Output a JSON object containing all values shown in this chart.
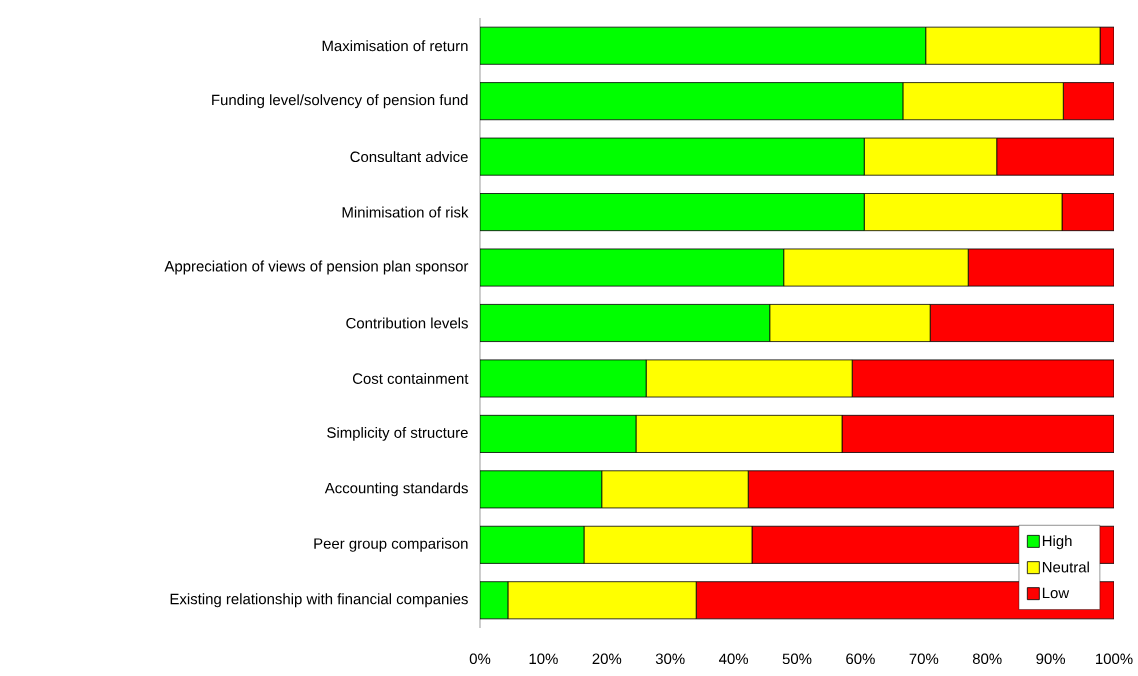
{
  "chart_data": {
    "type": "bar",
    "orientation": "horizontal",
    "stacked": true,
    "categories": [
      "Maximisation of return",
      "Funding level/solvency of pension fund",
      "Consultant advice",
      "Minimisation of risk",
      "Appreciation of views of pension plan sponsor",
      "Contribution levels",
      "Cost containment",
      "Simplicity of structure",
      "Accounting standards",
      "Peer group comparison",
      "Existing relationship with financial companies"
    ],
    "series": [
      {
        "name": "High",
        "color": "#00ff00",
        "values": [
          70.3,
          66.7,
          60.6,
          60.6,
          47.9,
          45.7,
          26.2,
          24.6,
          19.2,
          16.4,
          4.4
        ]
      },
      {
        "name": "Neutral",
        "color": "#ffff00",
        "values": [
          27.5,
          25.3,
          20.9,
          31.2,
          29.1,
          25.3,
          32.5,
          32.5,
          23.1,
          26.5,
          29.7
        ]
      },
      {
        "name": "Low",
        "color": "#ff0000",
        "values": [
          2.2,
          8.0,
          18.5,
          8.2,
          23.0,
          29.0,
          41.3,
          42.9,
          57.7,
          57.1,
          65.9
        ]
      }
    ],
    "xlim": [
      0,
      100
    ],
    "xticks": [
      {
        "value": 0,
        "label": "0%"
      },
      {
        "value": 10,
        "label": "10%"
      },
      {
        "value": 20,
        "label": "20%"
      },
      {
        "value": 30,
        "label": "30%"
      },
      {
        "value": 40,
        "label": "40%"
      },
      {
        "value": 50,
        "label": "50%"
      },
      {
        "value": 60,
        "label": "60%"
      },
      {
        "value": 70,
        "label": "70%"
      },
      {
        "value": 80,
        "label": "80%"
      },
      {
        "value": 90,
        "label": "90%"
      },
      {
        "value": 100,
        "label": "100%"
      }
    ],
    "legend": "bottom right",
    "grid": false
  }
}
